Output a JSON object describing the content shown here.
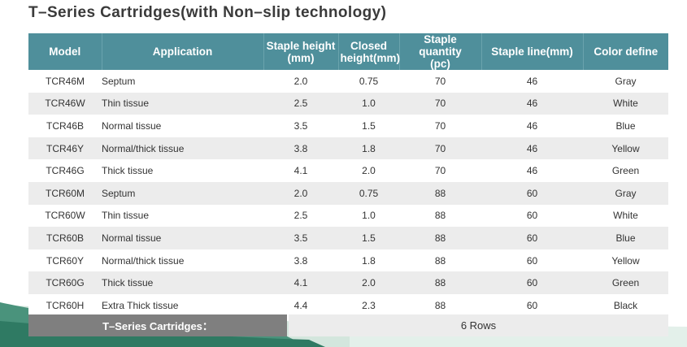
{
  "title": "T–Series Cartridges(with Non–slip technology)",
  "table": {
    "headers": [
      [
        "Model"
      ],
      [
        "Application"
      ],
      [
        "Staple height",
        "(mm)"
      ],
      [
        "Closed",
        "height(mm)"
      ],
      [
        "Staple quantity",
        "(pc)"
      ],
      [
        "Staple line(mm)"
      ],
      [
        "Color define"
      ]
    ],
    "rows": [
      [
        "TCR46M",
        "Septum",
        "2.0",
        "0.75",
        "70",
        "46",
        "Gray"
      ],
      [
        "TCR46W",
        "Thin tissue",
        "2.5",
        "1.0",
        "70",
        "46",
        "White"
      ],
      [
        "TCR46B",
        "Normal tissue",
        "3.5",
        "1.5",
        "70",
        "46",
        "Blue"
      ],
      [
        "TCR46Y",
        "Normal/thick tissue",
        "3.8",
        "1.8",
        "70",
        "46",
        "Yellow"
      ],
      [
        "TCR46G",
        "Thick tissue",
        "4.1",
        "2.0",
        "70",
        "46",
        "Green"
      ],
      [
        "TCR60M",
        "Septum",
        "2.0",
        "0.75",
        "88",
        "60",
        "Gray"
      ],
      [
        "TCR60W",
        "Thin tissue",
        "2.5",
        "1.0",
        "88",
        "60",
        "White"
      ],
      [
        "TCR60B",
        "Normal tissue",
        "3.5",
        "1.5",
        "88",
        "60",
        "Blue"
      ],
      [
        "TCR60Y",
        "Normal/thick tissue",
        "3.8",
        "1.8",
        "88",
        "60",
        "Yellow"
      ],
      [
        "TCR60G",
        "Thick tissue",
        "4.1",
        "2.0",
        "88",
        "60",
        "Green"
      ],
      [
        "TCR60H",
        "Extra Thick tissue",
        "4.4",
        "2.3",
        "88",
        "60",
        "Black"
      ]
    ]
  },
  "summary": {
    "label": "T–Series Cartridges：",
    "value": "6 Rows"
  },
  "colors": {
    "header_bg": "#4f8f9b",
    "stripe_bg": "#ececec",
    "summary_label_bg": "#7f7f7f",
    "wave_light": "#cfe3da",
    "wave_dark": "#3f8a73"
  }
}
